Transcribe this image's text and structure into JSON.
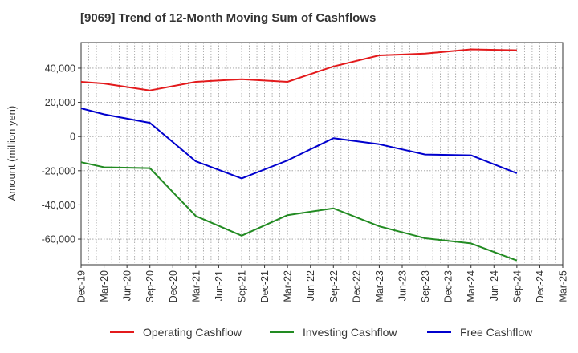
{
  "chart_data": {
    "type": "line",
    "title": "[9069]  Trend of 12-Month Moving Sum of Cashflows",
    "xlabel": "",
    "ylabel": "Amount (million yen)",
    "categories": [
      "Dec-19",
      "Mar-20",
      "Jun-20",
      "Sep-20",
      "Dec-20",
      "Mar-21",
      "Jun-21",
      "Sep-21",
      "Dec-21",
      "Mar-22",
      "Jun-22",
      "Sep-22",
      "Dec-22",
      "Mar-23",
      "Jun-23",
      "Sep-23",
      "Dec-23",
      "Mar-24",
      "Jun-24",
      "Sep-24",
      "Dec-24",
      "Mar-25"
    ],
    "ylim": [
      -75000,
      55000
    ],
    "yticks": [
      40000,
      20000,
      0,
      -20000,
      -40000,
      -60000
    ],
    "ytick_labels": [
      "40,000",
      "20,000",
      "0",
      "-20,000",
      "-40,000",
      "-60,000"
    ],
    "grid": true,
    "legend_position": "bottom",
    "series": [
      {
        "name": "Operating Cashflow",
        "color": "#e31a1c",
        "points": [
          {
            "x": "Dec-19",
            "y": 32000
          },
          {
            "x": "Mar-20",
            "y": 31000
          },
          {
            "x": "Sep-20",
            "y": 27000
          },
          {
            "x": "Mar-21",
            "y": 32000
          },
          {
            "x": "Sep-21",
            "y": 33500
          },
          {
            "x": "Mar-22",
            "y": 32000
          },
          {
            "x": "Sep-22",
            "y": 41000
          },
          {
            "x": "Mar-23",
            "y": 47500
          },
          {
            "x": "Sep-23",
            "y": 48500
          },
          {
            "x": "Mar-24",
            "y": 51000
          },
          {
            "x": "Sep-24",
            "y": 50500
          }
        ]
      },
      {
        "name": "Investing Cashflow",
        "color": "#228b22",
        "points": [
          {
            "x": "Dec-19",
            "y": -15000
          },
          {
            "x": "Mar-20",
            "y": -18000
          },
          {
            "x": "Sep-20",
            "y": -18500
          },
          {
            "x": "Mar-21",
            "y": -46500
          },
          {
            "x": "Sep-21",
            "y": -58000
          },
          {
            "x": "Mar-22",
            "y": -46000
          },
          {
            "x": "Sep-22",
            "y": -42000
          },
          {
            "x": "Mar-23",
            "y": -52500
          },
          {
            "x": "Sep-23",
            "y": -59500
          },
          {
            "x": "Mar-24",
            "y": -62500
          },
          {
            "x": "Sep-24",
            "y": -72500
          }
        ]
      },
      {
        "name": "Free Cashflow",
        "color": "#0000cd",
        "points": [
          {
            "x": "Dec-19",
            "y": 16500
          },
          {
            "x": "Mar-20",
            "y": 13000
          },
          {
            "x": "Sep-20",
            "y": 8000
          },
          {
            "x": "Mar-21",
            "y": -14500
          },
          {
            "x": "Sep-21",
            "y": -24500
          },
          {
            "x": "Mar-22",
            "y": -14000
          },
          {
            "x": "Sep-22",
            "y": -1000
          },
          {
            "x": "Mar-23",
            "y": -4500
          },
          {
            "x": "Sep-23",
            "y": -10500
          },
          {
            "x": "Mar-24",
            "y": -11000
          },
          {
            "x": "Sep-24",
            "y": -21500
          }
        ]
      }
    ]
  }
}
